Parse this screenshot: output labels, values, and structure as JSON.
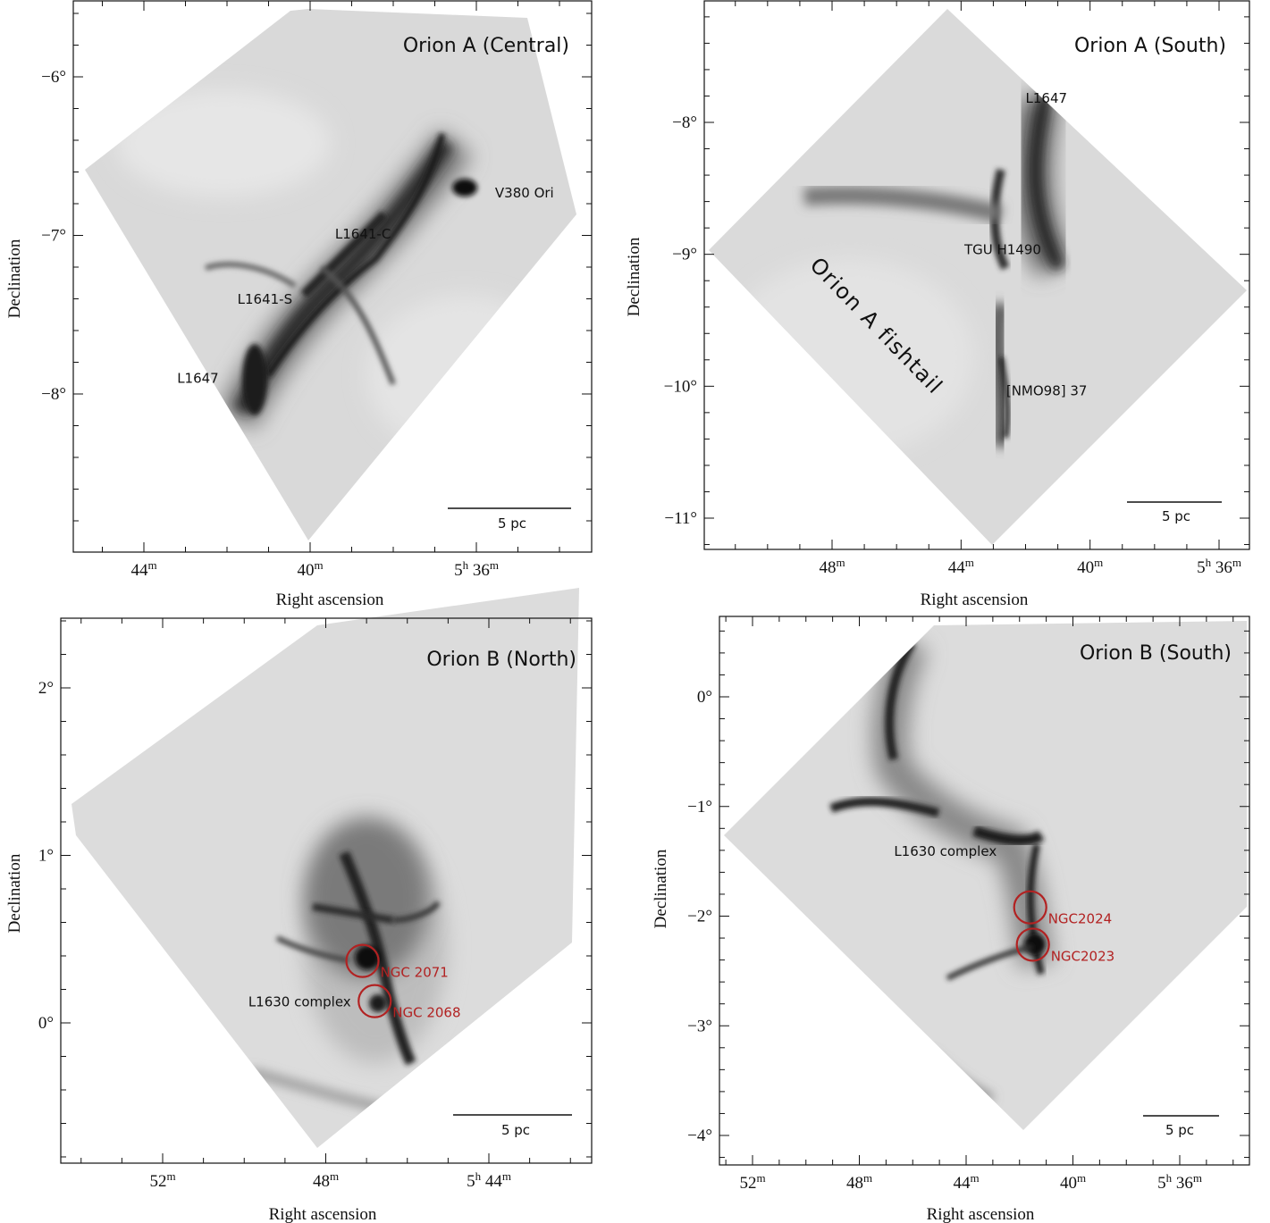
{
  "figure": {
    "panels": [
      {
        "id": "orion-a-central",
        "title": "Orion A (Central)",
        "ylabel": "Declination",
        "xlabel": "Right ascension",
        "yticks": [
          {
            "value": -6,
            "label": "−6°"
          },
          {
            "value": -7,
            "label": "−7°"
          },
          {
            "value": -8,
            "label": "−8°"
          }
        ],
        "xticks": [
          {
            "value": 44,
            "label": "44",
            "sup": "m",
            "hours": ""
          },
          {
            "value": 40,
            "label": "40",
            "sup": "m",
            "hours": ""
          },
          {
            "value": 36,
            "label": " 36",
            "sup": "m",
            "hours": "5",
            "hsup": "h"
          }
        ],
        "scalebar": "5 pc",
        "labels": [
          {
            "text": "V380 Ori",
            "ra": 35.55,
            "dec": -6.76
          },
          {
            "text": "L1641-C",
            "ra": 39.4,
            "dec": -7.02
          },
          {
            "text": "L1641-S",
            "ra": 41.75,
            "dec": -7.43
          },
          {
            "text": "L1647",
            "ra": 43.2,
            "dec": -7.93
          }
        ],
        "clusters": []
      },
      {
        "id": "orion-a-south",
        "title": "Orion A (South)",
        "ylabel": "Declination",
        "xlabel": "Right ascension",
        "yticks": [
          {
            "value": -8,
            "label": "−8°"
          },
          {
            "value": -9,
            "label": "−9°"
          },
          {
            "value": -10,
            "label": "−10°"
          },
          {
            "value": -11,
            "label": "−11°"
          }
        ],
        "xticks": [
          {
            "value": 48,
            "label": "48",
            "sup": "m",
            "hours": ""
          },
          {
            "value": 44,
            "label": "44",
            "sup": "m",
            "hours": ""
          },
          {
            "value": 40,
            "label": "40",
            "sup": "m",
            "hours": ""
          },
          {
            "value": 36,
            "label": " 36",
            "sup": "m",
            "hours": "5",
            "hsup": "h"
          }
        ],
        "scalebar": "5 pc",
        "labels": [
          {
            "text": "L1647",
            "ra": 42.0,
            "dec": -7.85
          },
          {
            "text": "TGU H1490",
            "ra": 43.9,
            "dec": -9.0
          },
          {
            "text": "[NMO98] 37",
            "ra": 42.6,
            "dec": -10.07
          }
        ],
        "rotated_label": "Orion A fishtail",
        "clusters": []
      },
      {
        "id": "orion-b-north",
        "title": "Orion B (North)",
        "ylabel": "Declination",
        "xlabel": "Right ascension",
        "yticks": [
          {
            "value": 2,
            "label": "2°"
          },
          {
            "value": 1,
            "label": "1°"
          },
          {
            "value": 0,
            "label": "0°"
          }
        ],
        "xticks": [
          {
            "value": 52,
            "label": "52",
            "sup": "m",
            "hours": ""
          },
          {
            "value": 48,
            "label": "48",
            "sup": "m",
            "hours": ""
          },
          {
            "value": 44,
            "label": " 44",
            "sup": "m",
            "hours": "5",
            "hsup": "h"
          }
        ],
        "scalebar": "5 pc",
        "labels": [
          {
            "text": "L1630 complex",
            "ra": 49.9,
            "dec": 0.1
          }
        ],
        "clusters": [
          {
            "text": "NGC 2071",
            "ra": 47.1,
            "dec": 0.37
          },
          {
            "text": "NGC 2068",
            "ra": 46.8,
            "dec": 0.13
          }
        ]
      },
      {
        "id": "orion-b-south",
        "title": "Orion B (South)",
        "ylabel": "Declination",
        "xlabel": "Right ascension",
        "yticks": [
          {
            "value": 0,
            "label": "0°"
          },
          {
            "value": -1,
            "label": "−1°"
          },
          {
            "value": -2,
            "label": "−2°"
          },
          {
            "value": -3,
            "label": "−3°"
          },
          {
            "value": -4,
            "label": "−4°"
          }
        ],
        "xticks": [
          {
            "value": 52,
            "label": "52",
            "sup": "m",
            "hours": ""
          },
          {
            "value": 48,
            "label": "48",
            "sup": "m",
            "hours": ""
          },
          {
            "value": 44,
            "label": "44",
            "sup": "m",
            "hours": ""
          },
          {
            "value": 40,
            "label": "40",
            "sup": "m",
            "hours": ""
          },
          {
            "value": 36,
            "label": " 36",
            "sup": "m",
            "hours": "5",
            "hsup": "h"
          }
        ],
        "scalebar": "5 pc",
        "labels": [
          {
            "text": "L1630 complex",
            "ra": 46.7,
            "dec": -1.45
          }
        ],
        "clusters": [
          {
            "text": "NGC2024",
            "ra": 41.6,
            "dec": -1.92
          },
          {
            "text": "NGC2023",
            "ra": 41.5,
            "dec": -2.26
          }
        ]
      }
    ],
    "colors": {
      "annotation_red": "#b22222",
      "map_light": "#dcdcdc",
      "map_dark": "#1a1a1a",
      "axis": "#111111"
    }
  }
}
